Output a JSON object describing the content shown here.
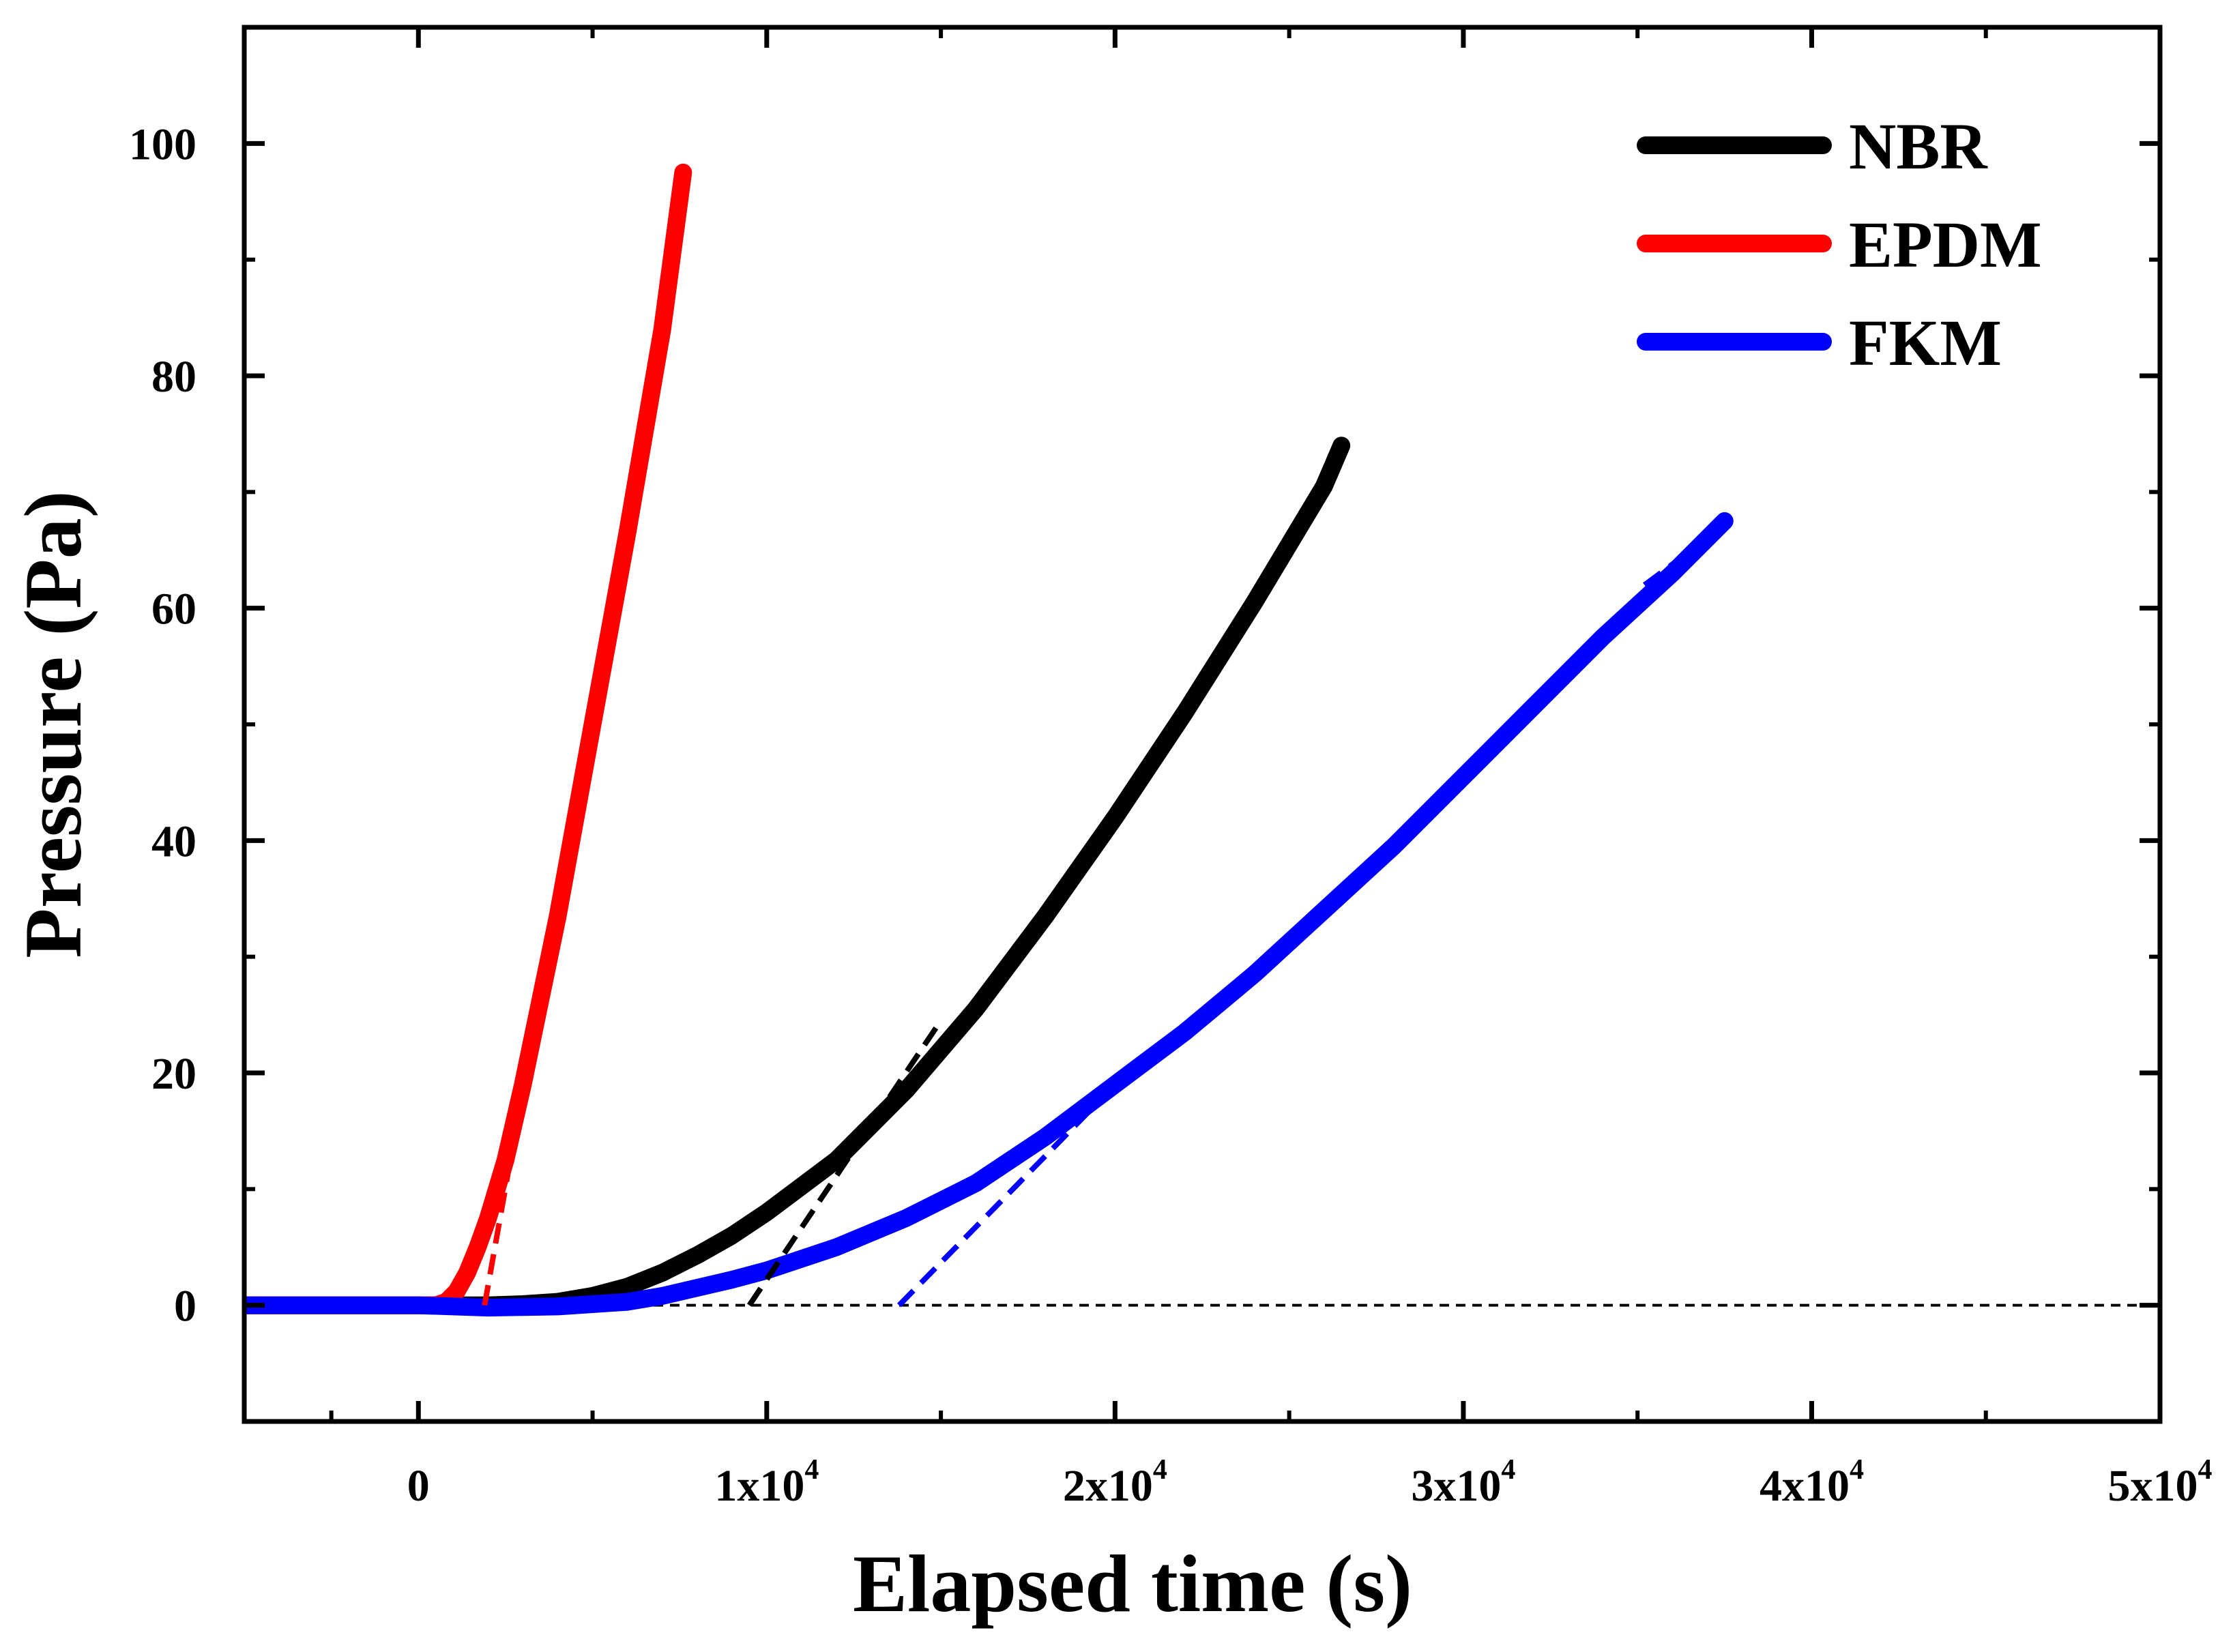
{
  "chart_data": {
    "type": "line",
    "title": "",
    "xlabel": "Elapsed time (s)",
    "ylabel": "Pressure (Pa)",
    "xlim": [
      -5000,
      50000
    ],
    "ylim": [
      -10,
      110
    ],
    "x_ticks": [
      {
        "value": 0,
        "label": "0",
        "sup": ""
      },
      {
        "value": 10000,
        "label": "1x10",
        "sup": "4"
      },
      {
        "value": 20000,
        "label": "2x10",
        "sup": "4"
      },
      {
        "value": 30000,
        "label": "3x10",
        "sup": "4"
      },
      {
        "value": 40000,
        "label": "4x10",
        "sup": "4"
      },
      {
        "value": 50000,
        "label": "5x10",
        "sup": "4"
      }
    ],
    "y_ticks": [
      0,
      20,
      40,
      60,
      80,
      100
    ],
    "grid": false,
    "legend_position": "top-right",
    "series": [
      {
        "name": "NBR",
        "color": "#000000",
        "x": [
          -5000,
          0,
          2000,
          3000,
          4000,
          5000,
          6000,
          7000,
          8000,
          9000,
          10000,
          12000,
          14000,
          16000,
          18000,
          20000,
          22000,
          24000,
          26000,
          26500
        ],
        "y": [
          0,
          0,
          0,
          0.1,
          0.3,
          0.8,
          1.6,
          2.8,
          4.3,
          6.0,
          8.0,
          12.5,
          18.5,
          25.5,
          33.5,
          42.0,
          51.0,
          60.5,
          70.5,
          74.0
        ]
      },
      {
        "name": "EPDM",
        "color": "#ff0000",
        "x": [
          -5000,
          0,
          500,
          800,
          1100,
          1400,
          1700,
          2000,
          2500,
          3000,
          4000,
          5000,
          6000,
          7000,
          7600
        ],
        "y": [
          0,
          0,
          0,
          0.3,
          1.2,
          2.8,
          5.0,
          7.5,
          12.5,
          19.0,
          33.5,
          50.0,
          66.5,
          84.0,
          97.5
        ]
      },
      {
        "name": "FKM",
        "color": "#0000ff",
        "x": [
          -5000,
          0,
          2000,
          4000,
          6000,
          7000,
          8000,
          9000,
          10000,
          12000,
          14000,
          16000,
          18000,
          20000,
          22000,
          24000,
          26000,
          28000,
          30000,
          32000,
          34000,
          36000,
          37500
        ],
        "y": [
          0,
          0,
          -0.2,
          -0.1,
          0.3,
          0.8,
          1.5,
          2.2,
          3.0,
          5.0,
          7.5,
          10.5,
          14.5,
          19.0,
          23.5,
          28.5,
          34.0,
          39.5,
          45.5,
          51.5,
          57.5,
          63.0,
          67.5
        ]
      }
    ],
    "fit_lines": [
      {
        "series": "NBR",
        "color": "#000000",
        "x": [
          9500,
          15000
        ],
        "y": [
          0,
          24.5
        ]
      },
      {
        "series": "EPDM",
        "color": "#ff0000",
        "x": [
          1900,
          2700
        ],
        "y": [
          0,
          13.5
        ]
      },
      {
        "series": "FKM",
        "color": "#0000ff",
        "x": [
          13800,
          20500
        ],
        "y": [
          0,
          20.5
        ]
      },
      {
        "series": "FKM",
        "color": "#0000ff",
        "x": [
          35200,
          37000
        ],
        "y": [
          62.0,
          66.0
        ]
      }
    ],
    "baseline": {
      "y": 0,
      "color": "#000000",
      "style": "dashed"
    }
  }
}
